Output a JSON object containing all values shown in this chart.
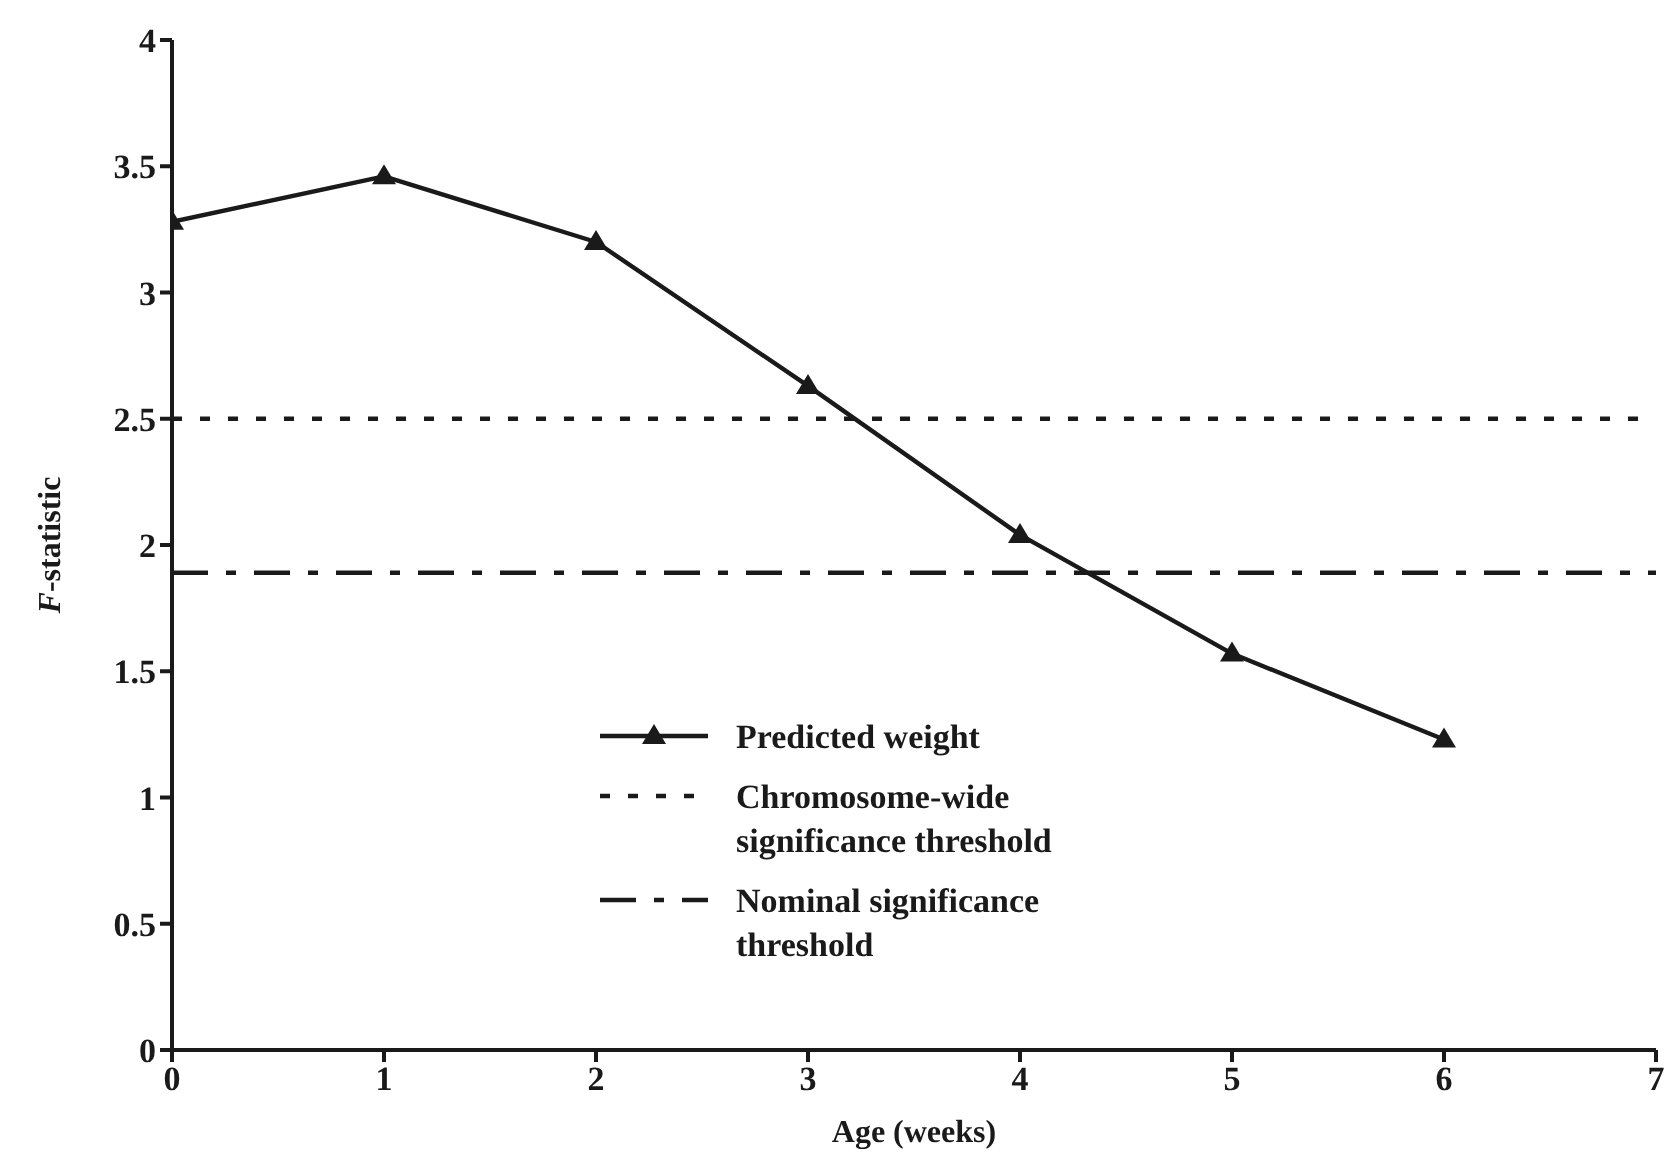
{
  "chart_data": {
    "type": "line",
    "xlabel": "Age (weeks)",
    "ylabel": "F-statistic",
    "x": [
      0,
      1,
      2,
      3,
      4,
      5,
      6
    ],
    "series": [
      {
        "name": "Predicted weight",
        "color": "#1a1a1a",
        "values": [
          3.28,
          3.46,
          3.2,
          2.63,
          2.04,
          1.57,
          1.23
        ]
      }
    ],
    "xlim": [
      0,
      7
    ],
    "xticks": [
      0,
      1,
      2,
      3,
      4,
      5,
      6,
      7
    ],
    "ylim": [
      0,
      4
    ],
    "yticks": [
      0,
      0.5,
      1,
      1.5,
      2,
      2.5,
      3,
      3.5,
      4
    ],
    "ref_lines": [
      {
        "axis": "y",
        "value": 2.5,
        "label": "Chromosome-wide significance threshold",
        "line_style": "dotted",
        "color": "#1a1a1a"
      },
      {
        "axis": "y",
        "value": 1.89,
        "label": "Nominal significance threshold",
        "line_style": "dashed",
        "color": "#1a1a1a"
      }
    ],
    "grid": false,
    "legend": "bottom",
    "marker": "triangle",
    "line_style": "solid"
  }
}
